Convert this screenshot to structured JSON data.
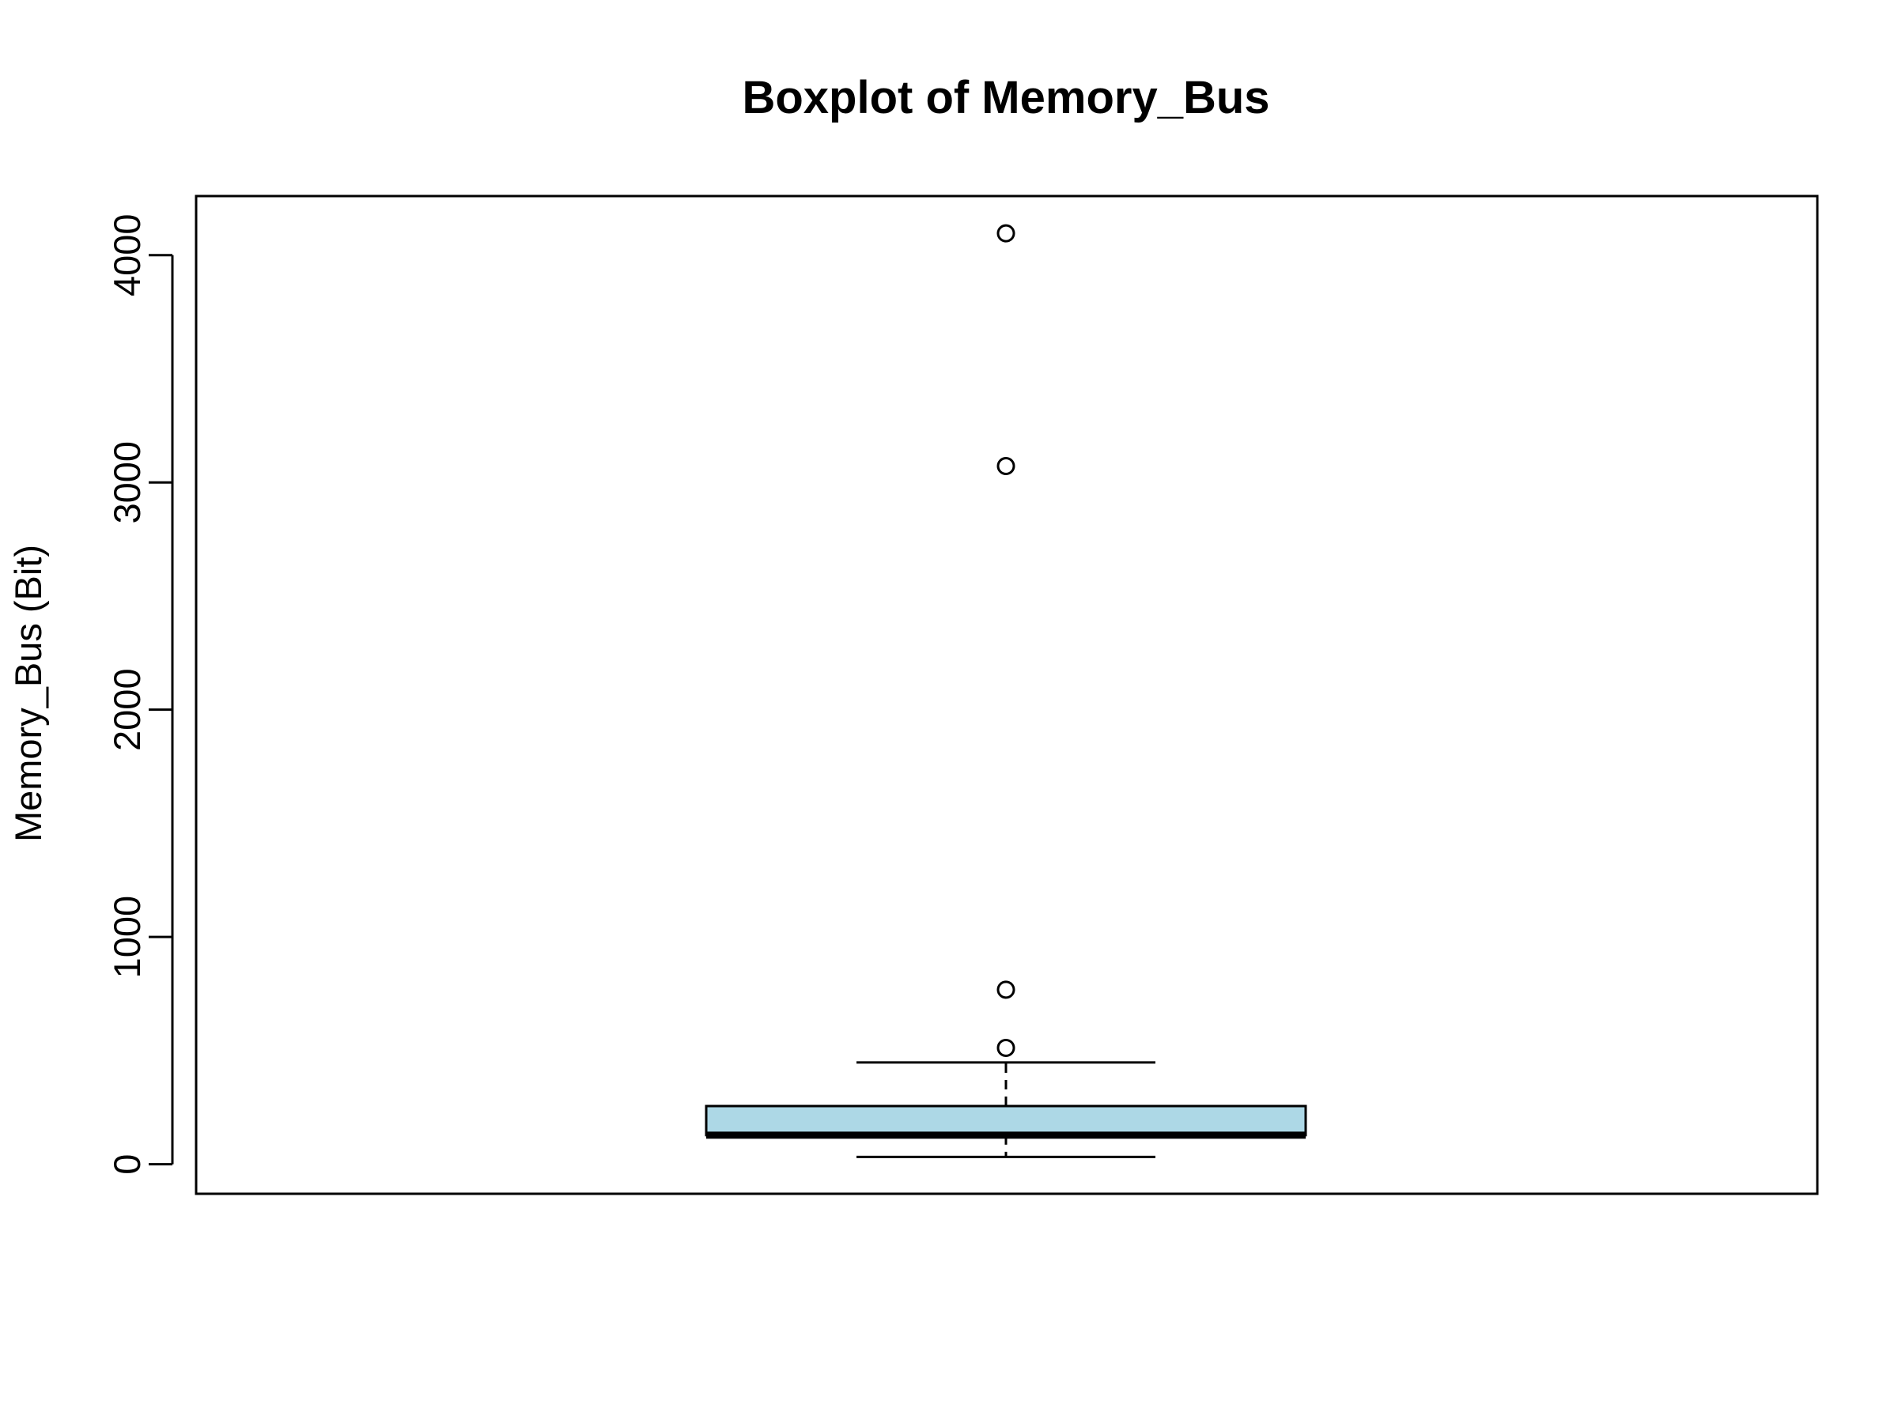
{
  "chart_data": {
    "type": "boxplot",
    "title": "Boxplot of Memory_Bus",
    "ylabel": "Memory_Bus (Bit)",
    "xlabel": "",
    "ylim": [
      -130,
      4260
    ],
    "yticks": [
      0,
      1000,
      2000,
      3000,
      4000
    ],
    "ytick_labels": [
      "0",
      "1000",
      "2000",
      "3000",
      "4000"
    ],
    "box": {
      "whisker_low": 32,
      "q1": 128,
      "median": 128,
      "q3": 256,
      "whisker_high": 448
    },
    "outliers": [
      512,
      768,
      3072,
      4096
    ],
    "grid": false,
    "legend": "none"
  },
  "colors": {
    "box_fill": "#add8e6",
    "stroke": "#000000",
    "background": "#ffffff"
  }
}
